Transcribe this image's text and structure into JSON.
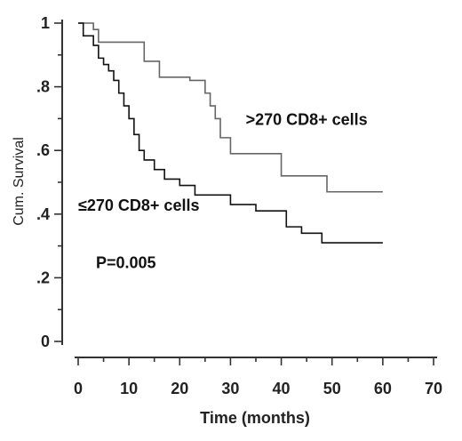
{
  "chart_data": {
    "type": "line",
    "xlabel": "Time (months)",
    "ylabel": "Cum. Survival",
    "xlim": [
      0,
      70
    ],
    "ylim": [
      0,
      1
    ],
    "x_ticks": [
      "0",
      "10",
      "20",
      "30",
      "40",
      "50",
      "60",
      "70"
    ],
    "y_ticks": [
      "0",
      ".2",
      ".4",
      ".6",
      ".8",
      "1"
    ],
    "grid": false,
    "step": true,
    "series": [
      {
        "name": ">270 CD8+ cells",
        "color": "#666666",
        "x": [
          0,
          3,
          4,
          13,
          16,
          22,
          25,
          26,
          27,
          28,
          30,
          40,
          49,
          60
        ],
        "y": [
          1.0,
          0.98,
          0.94,
          0.88,
          0.83,
          0.82,
          0.78,
          0.74,
          0.7,
          0.64,
          0.59,
          0.52,
          0.47,
          0.47
        ]
      },
      {
        "name": "≤270 CD8+ cells",
        "color": "#111111",
        "x": [
          0,
          1,
          3,
          4,
          5,
          6,
          7,
          8,
          9,
          10,
          11,
          12,
          13,
          15,
          17,
          20,
          23,
          30,
          35,
          41,
          44,
          48,
          60
        ],
        "y": [
          1.0,
          0.96,
          0.93,
          0.89,
          0.87,
          0.85,
          0.82,
          0.78,
          0.74,
          0.7,
          0.65,
          0.6,
          0.57,
          0.54,
          0.51,
          0.49,
          0.46,
          0.43,
          0.41,
          0.36,
          0.34,
          0.31,
          0.31
        ]
      }
    ],
    "annotations": [
      {
        "text": ">270 CD8+ cells",
        "x": 33,
        "y": 0.68
      },
      {
        "text": "≤270 CD8+ cells",
        "x": 0,
        "y": 0.41
      },
      {
        "text": "P=0.005",
        "x": 3.5,
        "y": 0.23
      }
    ]
  }
}
